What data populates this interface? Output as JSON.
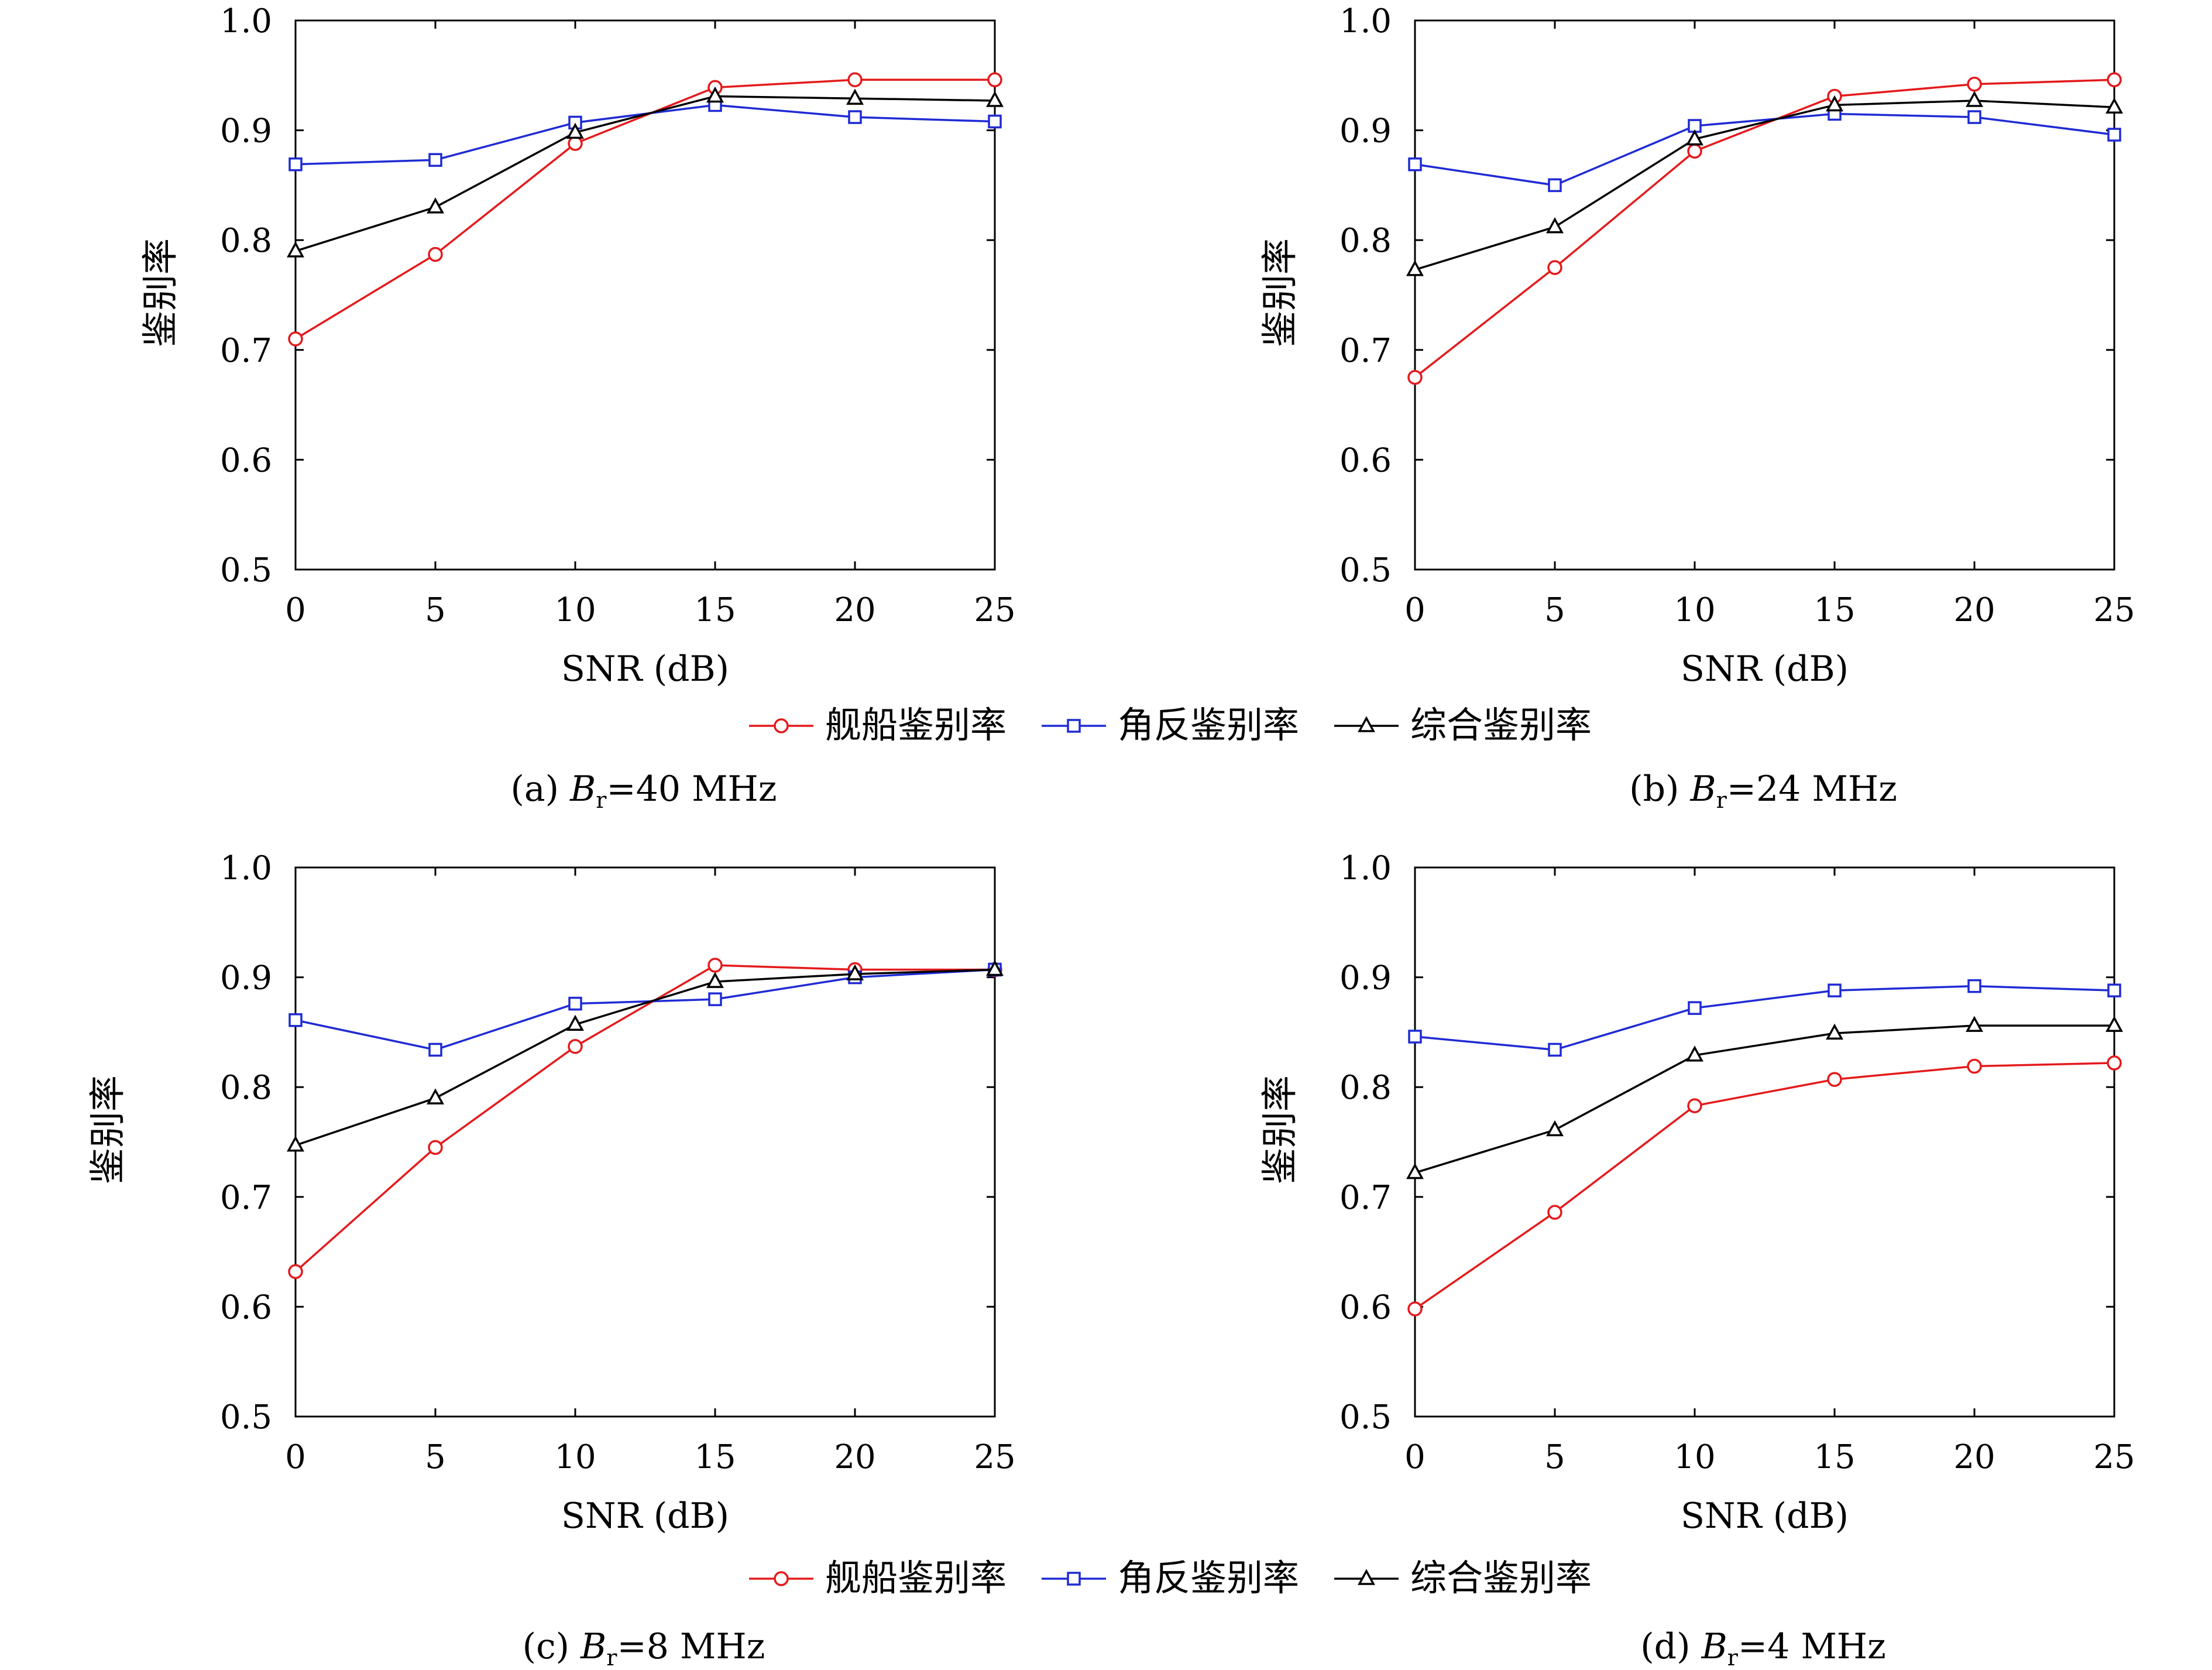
{
  "legend": [
    {
      "label": "舰船鉴别率",
      "color": "#e41a1c",
      "marker": "circle"
    },
    {
      "label": "角反鉴别率",
      "color": "#1f2bd4",
      "marker": "square"
    },
    {
      "label": "综合鉴别率",
      "color": "#000000",
      "marker": "triangle"
    }
  ],
  "chart_data": [
    {
      "type": "line",
      "caption_prefix": "(a) ",
      "caption_var": "B",
      "caption_sub": "r",
      "caption_suffix": "=40 MHz",
      "xlabel": "SNR (dB)",
      "ylabel": "鉴别率",
      "xlim": [
        0,
        25
      ],
      "ylim": [
        0.5,
        1.0
      ],
      "x": [
        0,
        5,
        10,
        15,
        20,
        25
      ],
      "xticks": [
        "0",
        "5",
        "10",
        "15",
        "20",
        "25"
      ],
      "yticks": [
        "0.5",
        "0.6",
        "0.7",
        "0.8",
        "0.9",
        "1.0"
      ],
      "series": [
        {
          "name": "舰船鉴别率",
          "values": [
            0.71,
            0.787,
            0.888,
            0.939,
            0.946,
            0.946
          ]
        },
        {
          "name": "角反鉴别率",
          "values": [
            0.869,
            0.873,
            0.907,
            0.923,
            0.912,
            0.908
          ]
        },
        {
          "name": "综合鉴别率",
          "values": [
            0.79,
            0.83,
            0.898,
            0.931,
            0.929,
            0.927
          ]
        }
      ]
    },
    {
      "type": "line",
      "caption_prefix": "(b) ",
      "caption_var": "B",
      "caption_sub": "r",
      "caption_suffix": "=24 MHz",
      "xlabel": "SNR (dB)",
      "ylabel": "鉴别率",
      "xlim": [
        0,
        25
      ],
      "ylim": [
        0.5,
        1.0
      ],
      "x": [
        0,
        5,
        10,
        15,
        20,
        25
      ],
      "xticks": [
        "0",
        "5",
        "10",
        "15",
        "20",
        "25"
      ],
      "yticks": [
        "0.5",
        "0.6",
        "0.7",
        "0.8",
        "0.9",
        "1.0"
      ],
      "series": [
        {
          "name": "舰船鉴别率",
          "values": [
            0.675,
            0.775,
            0.881,
            0.931,
            0.942,
            0.946
          ]
        },
        {
          "name": "角反鉴别率",
          "values": [
            0.869,
            0.85,
            0.904,
            0.915,
            0.912,
            0.896
          ]
        },
        {
          "name": "综合鉴别率",
          "values": [
            0.773,
            0.812,
            0.892,
            0.923,
            0.927,
            0.921
          ]
        }
      ]
    },
    {
      "type": "line",
      "caption_prefix": "(c) ",
      "caption_var": "B",
      "caption_sub": "r",
      "caption_suffix": "=8 MHz",
      "xlabel": "SNR (dB)",
      "ylabel": "鉴别率",
      "xlim": [
        0,
        25
      ],
      "ylim": [
        0.5,
        1.0
      ],
      "x": [
        0,
        5,
        10,
        15,
        20,
        25
      ],
      "xticks": [
        "0",
        "5",
        "10",
        "15",
        "20",
        "25"
      ],
      "yticks": [
        "0.5",
        "0.6",
        "0.7",
        "0.8",
        "0.9",
        "1.0"
      ],
      "series": [
        {
          "name": "舰船鉴别率",
          "values": [
            0.632,
            0.745,
            0.837,
            0.911,
            0.907,
            0.907
          ]
        },
        {
          "name": "角反鉴别率",
          "values": [
            0.861,
            0.834,
            0.876,
            0.88,
            0.9,
            0.907
          ]
        },
        {
          "name": "综合鉴别率",
          "values": [
            0.747,
            0.79,
            0.857,
            0.896,
            0.903,
            0.907
          ]
        }
      ]
    },
    {
      "type": "line",
      "caption_prefix": "(d) ",
      "caption_var": "B",
      "caption_sub": "r",
      "caption_suffix": "=4 MHz",
      "xlabel": "SNR (dB)",
      "ylabel": "鉴别率",
      "xlim": [
        0,
        25
      ],
      "ylim": [
        0.5,
        1.0
      ],
      "x": [
        0,
        5,
        10,
        15,
        20,
        25
      ],
      "xticks": [
        "0",
        "5",
        "10",
        "15",
        "20",
        "25"
      ],
      "yticks": [
        "0.5",
        "0.6",
        "0.7",
        "0.8",
        "0.9",
        "1.0"
      ],
      "series": [
        {
          "name": "舰船鉴别率",
          "values": [
            0.598,
            0.686,
            0.783,
            0.807,
            0.819,
            0.822
          ]
        },
        {
          "name": "角反鉴别率",
          "values": [
            0.846,
            0.834,
            0.872,
            0.888,
            0.892,
            0.888
          ]
        },
        {
          "name": "综合鉴别率",
          "values": [
            0.722,
            0.761,
            0.829,
            0.849,
            0.856,
            0.856
          ]
        }
      ]
    }
  ]
}
